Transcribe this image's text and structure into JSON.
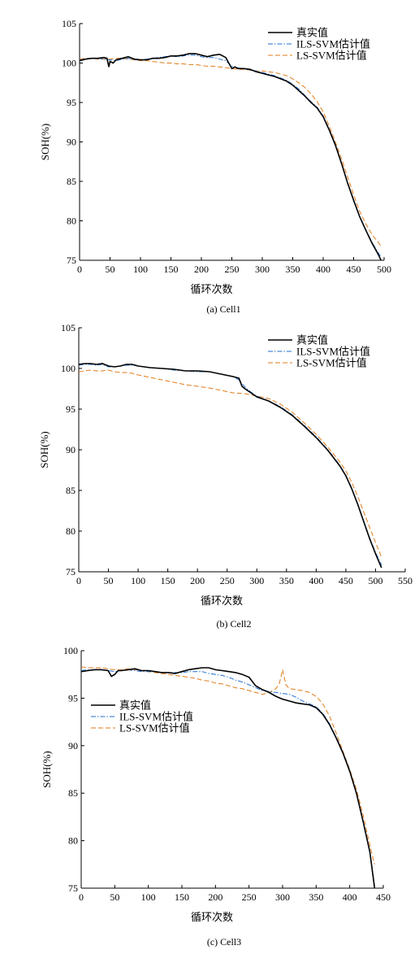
{
  "colors": {
    "true": "#000000",
    "ils": "#1f6fd0",
    "ls": "#e07b1a"
  },
  "line_styles": {
    "true": "solid",
    "ils": "dash-dot",
    "ls": "dashed"
  },
  "chart_data": [
    {
      "type": "line",
      "caption": "(a) Cell1",
      "xlabel": "循环次数",
      "ylabel": "SOH(%)",
      "xlim": [
        0,
        500
      ],
      "ylim": [
        75,
        105
      ],
      "xticks": [
        0,
        50,
        100,
        150,
        200,
        250,
        300,
        350,
        400,
        450,
        500
      ],
      "yticks": [
        75,
        80,
        85,
        90,
        95,
        100,
        105
      ],
      "legend_position": "top-right",
      "series": [
        {
          "name": "真实值",
          "key": "true",
          "x": [
            0,
            10,
            20,
            30,
            40,
            45,
            48,
            50,
            55,
            60,
            70,
            80,
            90,
            100,
            110,
            120,
            130,
            140,
            150,
            160,
            170,
            180,
            190,
            200,
            210,
            220,
            230,
            240,
            250,
            255,
            260,
            270,
            280,
            290,
            300,
            310,
            320,
            330,
            340,
            350,
            360,
            370,
            380,
            390,
            400,
            410,
            420,
            430,
            440,
            450,
            460,
            470,
            480,
            490,
            495
          ],
          "y": [
            100.3,
            100.5,
            100.6,
            100.6,
            100.7,
            100.6,
            99.5,
            100.2,
            100.0,
            100.4,
            100.6,
            100.8,
            100.5,
            100.4,
            100.4,
            100.6,
            100.6,
            100.7,
            100.9,
            100.9,
            101.0,
            101.2,
            101.2,
            101.0,
            100.8,
            101.0,
            101.1,
            100.7,
            99.3,
            99.5,
            99.3,
            99.3,
            99.2,
            98.9,
            98.7,
            98.5,
            98.3,
            98.0,
            97.7,
            97.2,
            96.5,
            95.8,
            95.0,
            94.3,
            93.2,
            91.5,
            89.6,
            87.3,
            84.8,
            82.6,
            80.5,
            78.8,
            77.2,
            75.8,
            75.0
          ]
        },
        {
          "name": "ILS-SVM估计值",
          "key": "ils",
          "x": [
            0,
            10,
            20,
            30,
            40,
            50,
            60,
            70,
            80,
            90,
            100,
            110,
            120,
            130,
            140,
            150,
            160,
            170,
            180,
            190,
            200,
            210,
            220,
            230,
            240,
            250,
            260,
            270,
            280,
            290,
            300,
            310,
            320,
            330,
            340,
            350,
            360,
            370,
            380,
            390,
            400,
            410,
            420,
            430,
            440,
            450,
            460,
            470,
            480,
            490,
            495
          ],
          "y": [
            100.4,
            100.5,
            100.6,
            100.6,
            100.5,
            100.4,
            100.3,
            100.5,
            100.6,
            100.4,
            100.4,
            100.5,
            100.6,
            100.7,
            100.8,
            100.9,
            100.8,
            100.9,
            101.0,
            101.0,
            100.8,
            100.7,
            100.7,
            100.5,
            100.3,
            99.6,
            99.4,
            99.3,
            99.1,
            99.0,
            98.8,
            98.6,
            98.4,
            98.1,
            97.8,
            97.3,
            96.7,
            95.9,
            95.1,
            94.4,
            93.3,
            91.6,
            89.7,
            87.4,
            84.9,
            82.7,
            80.6,
            78.9,
            77.3,
            76.0,
            75.4
          ]
        },
        {
          "name": "LS-SVM估计值",
          "key": "ls",
          "x": [
            0,
            10,
            20,
            30,
            40,
            50,
            60,
            70,
            80,
            90,
            100,
            110,
            120,
            130,
            140,
            150,
            160,
            170,
            180,
            190,
            200,
            210,
            220,
            230,
            240,
            250,
            260,
            270,
            280,
            290,
            300,
            310,
            320,
            330,
            340,
            350,
            360,
            370,
            380,
            390,
            400,
            410,
            420,
            430,
            440,
            450,
            460,
            470,
            480,
            490,
            495
          ],
          "y": [
            100.5,
            100.6,
            100.6,
            100.5,
            100.5,
            100.5,
            100.6,
            100.6,
            100.5,
            100.4,
            100.3,
            100.3,
            100.2,
            100.1,
            100.0,
            100.0,
            99.9,
            99.9,
            99.8,
            99.8,
            99.7,
            99.6,
            99.6,
            99.5,
            99.4,
            99.3,
            99.2,
            99.2,
            99.1,
            99.0,
            99.0,
            98.9,
            98.8,
            98.6,
            98.4,
            98.0,
            97.5,
            96.9,
            96.1,
            95.1,
            93.8,
            92.0,
            90.0,
            87.9,
            85.6,
            83.3,
            81.2,
            79.6,
            78.3,
            77.3,
            76.8
          ]
        }
      ]
    },
    {
      "type": "line",
      "caption": "(b) Cell2",
      "xlabel": "循环次数",
      "ylabel": "SOH(%)",
      "xlim": [
        0,
        550
      ],
      "ylim": [
        75,
        105
      ],
      "xticks": [
        0,
        50,
        100,
        150,
        200,
        250,
        300,
        350,
        400,
        450,
        500,
        550
      ],
      "yticks": [
        75,
        80,
        85,
        90,
        95,
        100,
        105
      ],
      "legend_position": "top-right",
      "series": [
        {
          "name": "真实值",
          "key": "true",
          "x": [
            0,
            10,
            20,
            30,
            40,
            50,
            60,
            70,
            80,
            90,
            100,
            120,
            140,
            160,
            180,
            200,
            220,
            240,
            260,
            270,
            275,
            280,
            290,
            300,
            320,
            340,
            360,
            380,
            400,
            420,
            440,
            450,
            460,
            470,
            480,
            490,
            500,
            510
          ],
          "y": [
            100.5,
            100.6,
            100.6,
            100.5,
            100.6,
            100.3,
            100.2,
            100.3,
            100.5,
            100.5,
            100.3,
            100.1,
            100.0,
            99.9,
            99.7,
            99.7,
            99.6,
            99.3,
            99.0,
            98.8,
            97.8,
            97.5,
            97.0,
            96.5,
            96.0,
            95.2,
            94.2,
            92.9,
            91.5,
            89.9,
            88.0,
            86.8,
            85.2,
            83.3,
            81.2,
            79.1,
            77.2,
            75.5
          ]
        },
        {
          "name": "ILS-SVM估计值",
          "key": "ils",
          "x": [
            0,
            10,
            20,
            30,
            40,
            50,
            60,
            70,
            80,
            90,
            100,
            120,
            140,
            160,
            180,
            200,
            220,
            240,
            260,
            270,
            280,
            290,
            300,
            320,
            340,
            360,
            380,
            400,
            420,
            440,
            450,
            460,
            470,
            480,
            490,
            500,
            510
          ],
          "y": [
            100.4,
            100.5,
            100.5,
            100.4,
            100.5,
            100.2,
            100.2,
            100.3,
            100.4,
            100.4,
            100.3,
            100.1,
            100.0,
            99.8,
            99.7,
            99.6,
            99.6,
            99.3,
            99.0,
            98.6,
            97.7,
            97.1,
            96.6,
            96.0,
            95.3,
            94.3,
            93.0,
            91.6,
            90.0,
            88.1,
            86.9,
            85.3,
            83.4,
            81.3,
            79.2,
            77.4,
            75.8
          ]
        },
        {
          "name": "LS-SVM估计值",
          "key": "ls",
          "x": [
            0,
            10,
            20,
            30,
            40,
            50,
            60,
            70,
            80,
            90,
            100,
            120,
            140,
            160,
            180,
            200,
            220,
            240,
            260,
            280,
            300,
            320,
            340,
            360,
            380,
            400,
            420,
            440,
            450,
            460,
            470,
            480,
            490,
            500,
            510
          ],
          "y": [
            99.6,
            99.7,
            99.8,
            99.7,
            99.7,
            99.8,
            99.6,
            99.5,
            99.5,
            99.4,
            99.2,
            98.9,
            98.6,
            98.3,
            98.0,
            97.8,
            97.6,
            97.3,
            97.0,
            96.9,
            96.6,
            96.3,
            95.6,
            94.6,
            93.3,
            91.9,
            90.3,
            88.5,
            87.4,
            86.0,
            84.3,
            82.4,
            80.5,
            78.6,
            76.8
          ]
        }
      ]
    },
    {
      "type": "line",
      "caption": "(c) Cell3",
      "xlabel": "循环次数",
      "ylabel": "SOH(%)",
      "xlim": [
        0,
        450
      ],
      "ylim": [
        75,
        100
      ],
      "xticks": [
        0,
        50,
        100,
        150,
        200,
        250,
        300,
        350,
        400,
        450
      ],
      "yticks": [
        75,
        80,
        85,
        90,
        95,
        100
      ],
      "legend_position": "top-left",
      "series": [
        {
          "name": "真实值",
          "key": "true",
          "x": [
            0,
            10,
            20,
            30,
            40,
            45,
            50,
            55,
            60,
            70,
            80,
            90,
            100,
            110,
            120,
            130,
            140,
            150,
            160,
            170,
            180,
            190,
            200,
            210,
            220,
            230,
            240,
            250,
            260,
            270,
            280,
            290,
            300,
            310,
            320,
            330,
            340,
            350,
            360,
            370,
            380,
            390,
            400,
            410,
            420,
            430,
            437
          ],
          "y": [
            97.8,
            97.9,
            98.0,
            98.0,
            97.9,
            97.3,
            97.5,
            97.9,
            97.9,
            98.0,
            98.1,
            97.9,
            97.9,
            97.8,
            97.7,
            97.7,
            97.6,
            97.8,
            98.0,
            98.1,
            98.2,
            98.2,
            98.0,
            97.9,
            97.8,
            97.7,
            97.5,
            97.2,
            96.3,
            95.9,
            95.6,
            95.2,
            94.9,
            94.7,
            94.5,
            94.4,
            94.3,
            94.0,
            93.3,
            92.2,
            90.8,
            89.2,
            87.3,
            85.0,
            82.0,
            78.8,
            75.0
          ]
        },
        {
          "name": "ILS-SVM估计值",
          "key": "ils",
          "x": [
            0,
            10,
            20,
            30,
            40,
            50,
            60,
            70,
            80,
            90,
            100,
            110,
            120,
            130,
            140,
            150,
            160,
            170,
            180,
            190,
            200,
            210,
            220,
            230,
            240,
            250,
            260,
            270,
            280,
            290,
            300,
            310,
            320,
            330,
            340,
            350,
            360,
            370,
            380,
            390,
            400,
            410,
            420,
            430,
            437
          ],
          "y": [
            97.9,
            98.0,
            98.0,
            98.0,
            97.9,
            97.8,
            97.9,
            98.0,
            97.9,
            97.8,
            97.8,
            97.8,
            97.7,
            97.7,
            97.7,
            97.7,
            97.8,
            97.8,
            97.8,
            97.6,
            97.5,
            97.4,
            97.2,
            96.9,
            96.7,
            96.4,
            96.1,
            95.8,
            95.7,
            95.6,
            95.5,
            95.4,
            95.1,
            94.7,
            94.4,
            94.1,
            93.4,
            92.3,
            90.9,
            89.3,
            87.4,
            85.1,
            82.1,
            78.9,
            75.3
          ]
        },
        {
          "name": "LS-SVM估计值",
          "key": "ls",
          "x": [
            0,
            10,
            20,
            30,
            40,
            50,
            60,
            70,
            80,
            90,
            100,
            110,
            120,
            130,
            140,
            150,
            160,
            170,
            180,
            190,
            200,
            210,
            220,
            230,
            240,
            250,
            260,
            270,
            280,
            290,
            295,
            300,
            305,
            310,
            320,
            330,
            340,
            350,
            360,
            370,
            380,
            390,
            400,
            410,
            420,
            430,
            437
          ],
          "y": [
            98.3,
            98.2,
            98.2,
            98.2,
            98.1,
            98.0,
            98.0,
            98.1,
            98.0,
            97.9,
            97.8,
            97.7,
            97.6,
            97.5,
            97.4,
            97.3,
            97.2,
            97.1,
            96.9,
            96.8,
            96.6,
            96.5,
            96.3,
            96.1,
            96.0,
            95.8,
            95.6,
            95.4,
            95.6,
            96.0,
            96.5,
            98.0,
            96.4,
            96.0,
            95.9,
            95.8,
            95.6,
            95.2,
            94.4,
            93.1,
            91.3,
            89.4,
            87.5,
            85.4,
            82.7,
            79.5,
            77.5
          ]
        }
      ]
    }
  ]
}
